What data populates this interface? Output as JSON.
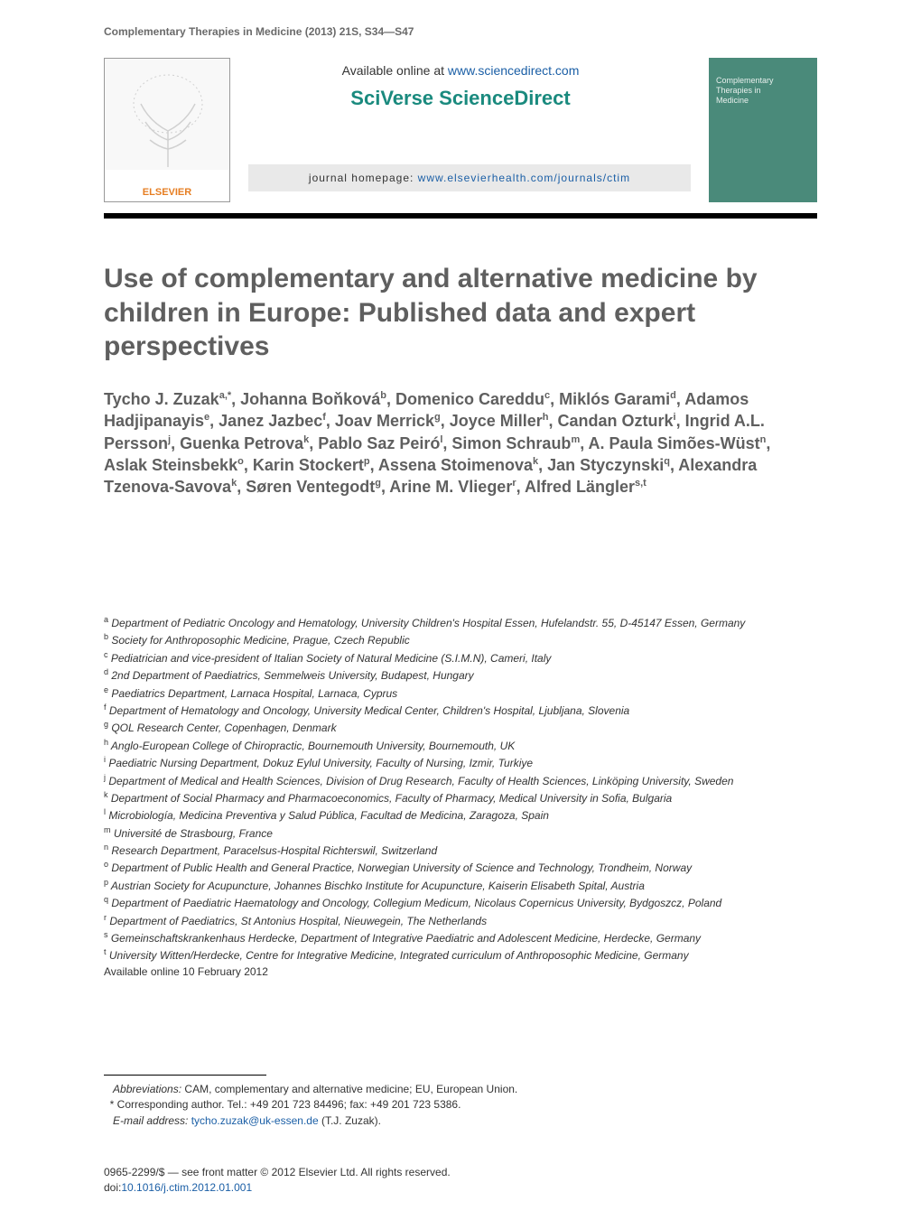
{
  "running_head": "Complementary Therapies in Medicine (2013) 21S, S34—S47",
  "header": {
    "available_text": "Available online at ",
    "available_url": "www.sciencedirect.com",
    "sciverse": "SciVerse ScienceDirect",
    "homepage_label": "journal homepage: ",
    "homepage_url": "www.elsevierhealth.com/journals/ctim",
    "elsevier_label": "ELSEVIER",
    "cover_line1": "Complementary",
    "cover_line2": "Therapies in",
    "cover_line3": "Medicine"
  },
  "title": "Use of complementary and alternative medicine by children in Europe: Published data and expert perspectives",
  "authors_html": "Tycho J. Zuzak<sup>a,*</sup>, Johanna Boňková<sup>b</sup>, Domenico Careddu<sup>c</sup>, Miklós Garami<sup>d</sup>, Adamos Hadjipanayis<sup>e</sup>, Janez Jazbec<sup>f</sup>, Joav Merrick<sup>g</sup>, Joyce Miller<sup>h</sup>, Candan Ozturk<sup>i</sup>, Ingrid A.L. Persson<sup>j</sup>, Guenka Petrova<sup>k</sup>, Pablo Saz Peiró<sup>l</sup>, Simon Schraub<sup>m</sup>, A. Paula Simões-Wüst<sup>n</sup>, Aslak Steinsbekk<sup>o</sup>, Karin Stockert<sup>p</sup>, Assena Stoimenova<sup>k</sup>, Jan Styczynski<sup>q</sup>, Alexandra Tzenova-Savova<sup>k</sup>, Søren Ventegodt<sup>g</sup>, Arine M. Vlieger<sup>r</sup>, Alfred Längler<sup>s,t</sup>",
  "affiliations": [
    {
      "sup": "a",
      "text": "Department of Pediatric Oncology and Hematology, University Children's Hospital Essen, Hufelandstr. 55, D-45147 Essen, Germany"
    },
    {
      "sup": "b",
      "text": "Society for Anthroposophic Medicine, Prague, Czech Republic"
    },
    {
      "sup": "c",
      "text": "Pediatrician and vice-president of Italian Society of Natural Medicine (S.I.M.N), Cameri, Italy"
    },
    {
      "sup": "d",
      "text": "2nd Department of Paediatrics, Semmelweis University, Budapest, Hungary"
    },
    {
      "sup": "e",
      "text": "Paediatrics Department, Larnaca Hospital, Larnaca, Cyprus"
    },
    {
      "sup": "f",
      "text": "Department of Hematology and Oncology, University Medical Center, Children's Hospital, Ljubljana, Slovenia"
    },
    {
      "sup": "g",
      "text": "QOL Research Center, Copenhagen, Denmark"
    },
    {
      "sup": "h",
      "text": "Anglo-European College of Chiropractic, Bournemouth University, Bournemouth, UK"
    },
    {
      "sup": "i",
      "text": "Paediatric Nursing Department, Dokuz Eylul University, Faculty of Nursing, Izmir, Turkiye"
    },
    {
      "sup": "j",
      "text": "Department of Medical and Health Sciences, Division of Drug Research, Faculty of Health Sciences, Linköping University, Sweden"
    },
    {
      "sup": "k",
      "text": "Department of Social Pharmacy and Pharmacoeconomics, Faculty of Pharmacy, Medical University in Sofia, Bulgaria"
    },
    {
      "sup": "l",
      "text": "Microbiología, Medicina Preventiva y Salud Pública, Facultad de Medicina, Zaragoza, Spain"
    },
    {
      "sup": "m",
      "text": "Université de Strasbourg, France"
    },
    {
      "sup": "n",
      "text": "Research Department, Paracelsus-Hospital Richterswil, Switzerland"
    },
    {
      "sup": "o",
      "text": "Department of Public Health and General Practice, Norwegian University of Science and Technology, Trondheim, Norway"
    },
    {
      "sup": "p",
      "text": "Austrian Society for Acupuncture, Johannes Bischko Institute for Acupuncture, Kaiserin Elisabeth Spital, Austria"
    },
    {
      "sup": "q",
      "text": "Department of Paediatric Haematology and Oncology, Collegium Medicum, Nicolaus Copernicus University, Bydgoszcz, Poland"
    },
    {
      "sup": "r",
      "text": "Department of Paediatrics, St Antonius Hospital, Nieuwegein, The Netherlands"
    },
    {
      "sup": "s",
      "text": "Gemeinschaftskrankenhaus Herdecke, Department of Integrative Paediatric and Adolescent Medicine, Herdecke, Germany"
    },
    {
      "sup": "t",
      "text": "University Witten/Herdecke, Centre for Integrative Medicine, Integrated curriculum of Anthroposophic Medicine, Germany"
    }
  ],
  "available_date": "Available online 10 February 2012",
  "footnotes": {
    "abbrev_label": "Abbreviations:",
    "abbrev_text": " CAM, complementary and alternative medicine; EU, European Union.",
    "corr_label": "* Corresponding author. ",
    "corr_text": "Tel.: +49 201 723 84496; fax: +49 201 723 5386.",
    "email_label": "E-mail address: ",
    "email": "tycho.zuzak@uk-essen.de",
    "email_suffix": " (T.J. Zuzak)."
  },
  "copyright": {
    "line1": "0965-2299/$ — see front matter © 2012 Elsevier Ltd. All rights reserved.",
    "doi_label": "doi:",
    "doi": "10.1016/j.ctim.2012.01.001"
  },
  "colors": {
    "link": "#1b5fa6",
    "gray_title": "#5f5f5f",
    "teal": "#1a8a7e",
    "cover_bg": "#4a8a7a",
    "elsevier_orange": "#e67e22"
  },
  "typography": {
    "title_fontsize": 30,
    "authors_fontsize": 18,
    "aff_fontsize": 12,
    "footnote_fontsize": 12,
    "running_head_fontsize": 12
  }
}
